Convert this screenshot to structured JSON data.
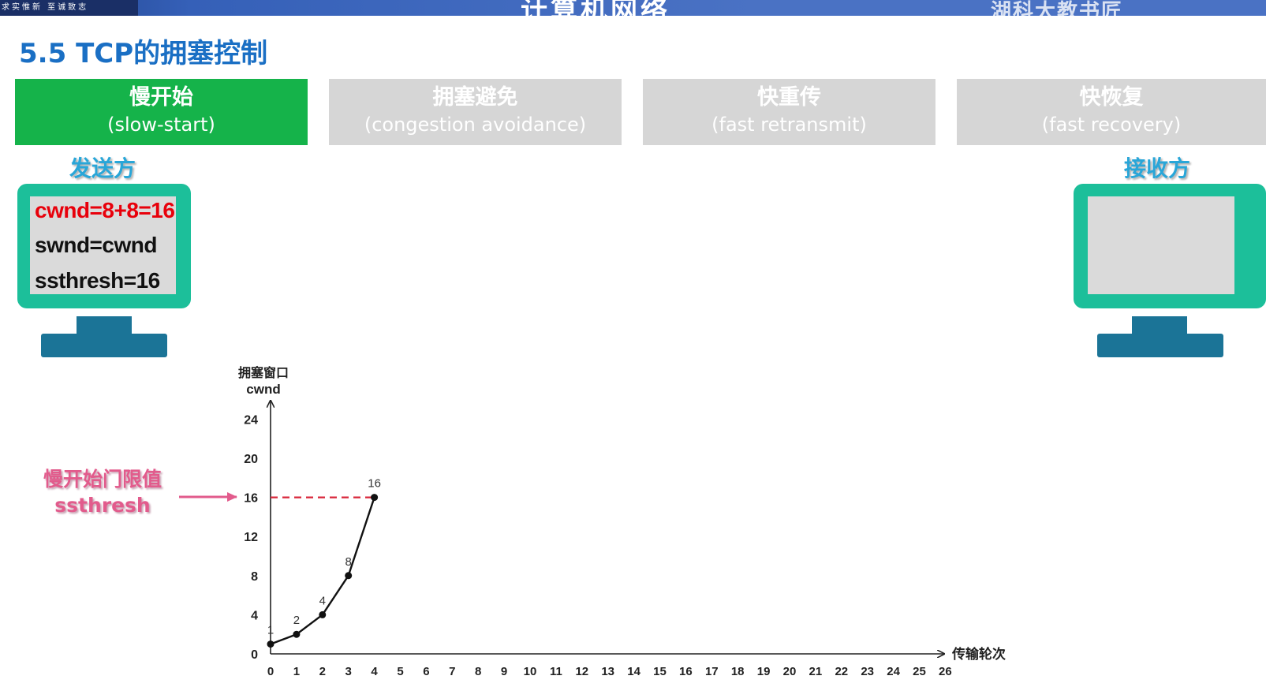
{
  "header": {
    "motto": "求实惟新  至诚致志",
    "course_title": "计算机网络",
    "school": "湖科大教书匠"
  },
  "section_title": "5.5 TCP的拥塞控制",
  "tabs": [
    {
      "cn": "慢开始",
      "en": "(slow-start)",
      "active": true
    },
    {
      "cn": "拥塞避免",
      "en": "(congestion avoidance)",
      "active": false
    },
    {
      "cn": "快重传",
      "en": "(fast retransmit)",
      "active": false
    },
    {
      "cn": "快恢复",
      "en": "(fast recovery)",
      "active": false
    }
  ],
  "sender": {
    "label": "发送方",
    "lines": [
      "cwnd=8+8=16",
      "swnd=cwnd",
      "ssthresh=16"
    ],
    "highlight_color": "#e8000b"
  },
  "receiver": {
    "label": "接收方"
  },
  "ssthresh_annotation": {
    "line1": "慢开始门限值",
    "line2": "ssthresh"
  },
  "colors": {
    "active_tab": "#15b34a",
    "inactive_tab": "#d6d6d6",
    "monitor": "#1cbf9a",
    "monitor_stand": "#1b7497",
    "title": "#1a6fc4",
    "ssthresh_line": "#d9263a",
    "annotation": "#e25b8c"
  },
  "chart_data": {
    "type": "line",
    "ylabel_cn": "拥塞窗口",
    "ylabel": "cwnd",
    "xlabel": "传输轮次",
    "yticks": [
      0,
      4,
      8,
      12,
      16,
      20,
      24
    ],
    "xticks": [
      0,
      1,
      2,
      3,
      4,
      5,
      6,
      7,
      8,
      9,
      10,
      11,
      12,
      13,
      14,
      15,
      16,
      17,
      18,
      19,
      20,
      21,
      22,
      23,
      24,
      25,
      26
    ],
    "ylim": [
      0,
      26
    ],
    "xlim": [
      0,
      26
    ],
    "series": [
      {
        "x": [
          0,
          1,
          2,
          3,
          4
        ],
        "y": [
          1,
          2,
          4,
          8,
          16
        ],
        "point_labels": [
          "1",
          "2",
          "4",
          "8",
          "16"
        ]
      }
    ],
    "ssthresh": 16
  }
}
